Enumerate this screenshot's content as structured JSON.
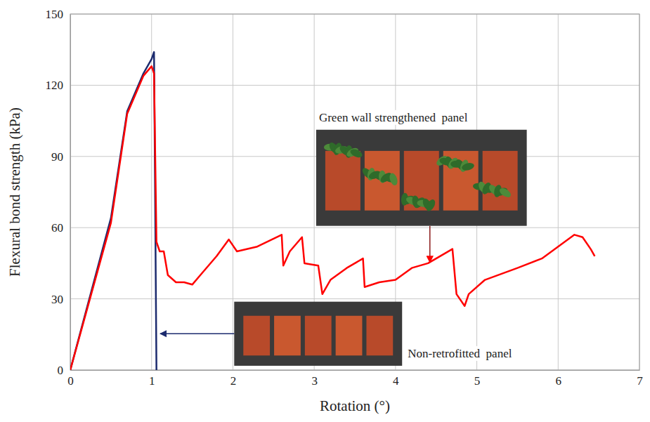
{
  "chart_data": {
    "type": "line",
    "x_label": "Rotation (°)",
    "y_label": "Flexural bond strength (kPa)",
    "x": [
      0,
      0.5,
      0.7,
      0.9,
      1.0,
      1.03,
      1.06,
      1.1,
      1.15,
      1.2,
      1.3,
      1.4,
      1.5,
      1.6,
      1.8,
      1.95,
      2.05,
      2.3,
      2.6,
      2.62,
      2.7,
      2.85,
      2.88,
      3.05,
      3.1,
      3.2,
      3.4,
      3.6,
      3.62,
      3.8,
      4.0,
      4.2,
      4.4,
      4.6,
      4.7,
      4.75,
      4.85,
      4.9,
      5.1,
      5.5,
      5.8,
      6.0,
      6.2,
      6.3,
      6.4,
      6.45
    ],
    "series": [
      {
        "name": "Non-retrofitted  panel",
        "color": "#1c2b6e",
        "values": [
          0,
          64,
          109,
          125,
          131,
          134,
          0,
          null,
          null,
          null,
          null,
          null,
          null,
          null,
          null,
          null,
          null,
          null,
          null,
          null,
          null,
          null,
          null,
          null,
          null,
          null,
          null,
          null,
          null,
          null,
          null,
          null,
          null,
          null,
          null,
          null,
          null,
          null,
          null,
          null,
          null,
          null,
          null,
          null,
          null,
          null
        ]
      },
      {
        "name": "Green wall strengthened  panel",
        "color": "#ff0000",
        "values": [
          0,
          62,
          108,
          124,
          128,
          125,
          54,
          50,
          50,
          40,
          37,
          37,
          36,
          40,
          48,
          55,
          50,
          52,
          57,
          44,
          50,
          56,
          45,
          44,
          32,
          38,
          43,
          47,
          35,
          37,
          38,
          43,
          45,
          49,
          51,
          32,
          27,
          32,
          38,
          43,
          47,
          52,
          57,
          56,
          51,
          48
        ]
      }
    ],
    "xlim": [
      0,
      7
    ],
    "xticks": [
      0,
      1,
      2,
      3,
      4,
      5,
      6,
      7
    ],
    "ylim": [
      0,
      150
    ],
    "yticks": [
      0,
      30,
      60,
      90,
      120,
      150
    ],
    "grid": true
  }
}
